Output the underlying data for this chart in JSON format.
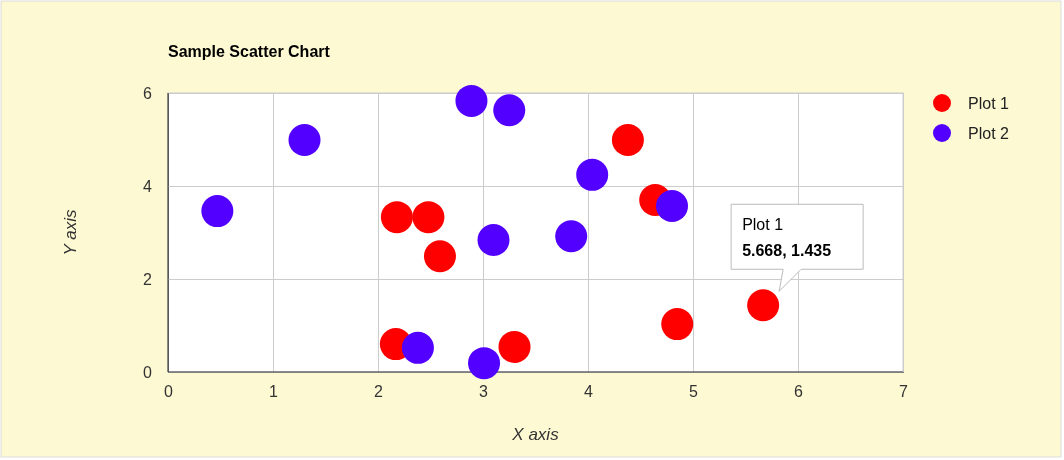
{
  "chart_data": {
    "type": "scatter",
    "title": "Sample Scatter Chart",
    "xlabel": "X axis",
    "ylabel": "Y axis",
    "xlim": [
      0,
      7
    ],
    "xticks": [
      0,
      1,
      2,
      3,
      4,
      5,
      6,
      7
    ],
    "ylim": [
      0,
      6
    ],
    "yticks": [
      0,
      2,
      4,
      6
    ],
    "grid": true,
    "legend": "top right",
    "marker": "circle",
    "series": [
      {
        "name": "Plot 1",
        "color": "#ff0000",
        "x": [
          2.17,
          2.18,
          2.48,
          2.59,
          3.3,
          4.38,
          4.64,
          4.85,
          5.668
        ],
        "values": [
          0.6,
          3.33,
          3.33,
          2.49,
          0.54,
          4.99,
          3.7,
          1.03,
          1.435
        ]
      },
      {
        "name": "Plot 2",
        "color": "#5200ff",
        "x": [
          0.47,
          1.3,
          2.38,
          2.89,
          3.25,
          3.1,
          3.01,
          3.84,
          4.04,
          4.8
        ],
        "values": [
          3.46,
          4.99,
          0.52,
          5.83,
          5.63,
          2.84,
          0.19,
          2.92,
          4.24,
          3.57
        ]
      }
    ],
    "annotations": [
      {
        "text": "Plot 1\n5.668, 1.435",
        "x": 5.668,
        "y": 1.435
      }
    ]
  }
}
